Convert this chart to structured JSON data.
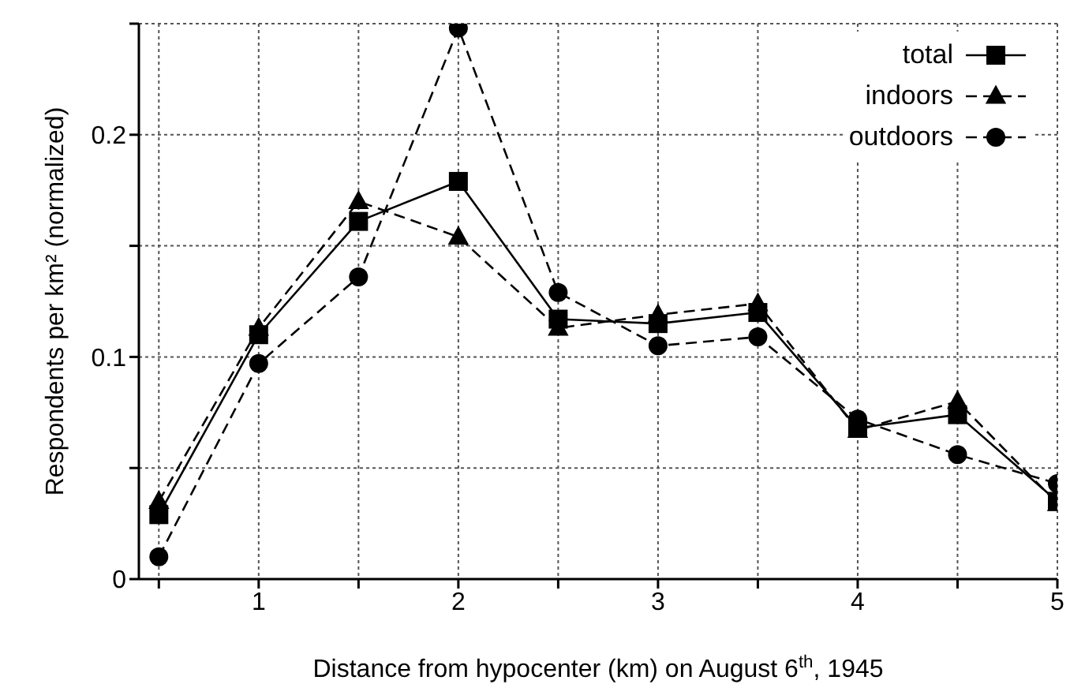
{
  "chart_data": {
    "type": "line",
    "xlabel": "Distance from hypocenter (km) on August 6$^{th}$, 1945",
    "ylabel": "Respondents per km² (normalized)",
    "x": [
      0.5,
      1,
      1.5,
      2,
      2.5,
      3,
      3.5,
      4,
      4.5,
      5
    ],
    "series": [
      {
        "name": "total",
        "color": "#000000",
        "marker": "square",
        "line_style": "solid",
        "values": [
          0.029,
          0.11,
          0.161,
          0.179,
          0.117,
          0.115,
          0.12,
          0.068,
          0.074,
          0.035
        ]
      },
      {
        "name": "indoors",
        "color": "#000000",
        "marker": "triangle",
        "line_style": "dashed",
        "values": [
          0.035,
          0.113,
          0.17,
          0.154,
          0.113,
          0.119,
          0.124,
          0.067,
          0.08,
          0.034
        ]
      },
      {
        "name": "outdoors",
        "color": "#000000",
        "marker": "circle",
        "line_style": "dashed",
        "values": [
          0.01,
          0.097,
          0.136,
          0.248,
          0.129,
          0.105,
          0.109,
          0.072,
          0.056,
          0.043
        ]
      }
    ],
    "xlim": [
      0.4,
      5
    ],
    "xticks": [
      {
        "value": 0.5,
        "label": null
      },
      1,
      {
        "value": 1.5,
        "label": null
      },
      2,
      {
        "value": 2.5,
        "label": null
      },
      3,
      {
        "value": 3.5,
        "label": null
      },
      4,
      {
        "value": 4.5,
        "label": null
      },
      5
    ],
    "ylim": [
      0,
      0.25
    ],
    "yticks": [
      0,
      {
        "value": 0.05,
        "label": null
      },
      0.1,
      {
        "value": 0.15,
        "label": null
      },
      0.2,
      {
        "value": 0.25,
        "label": null
      }
    ],
    "grid": true,
    "legend": "top right"
  }
}
